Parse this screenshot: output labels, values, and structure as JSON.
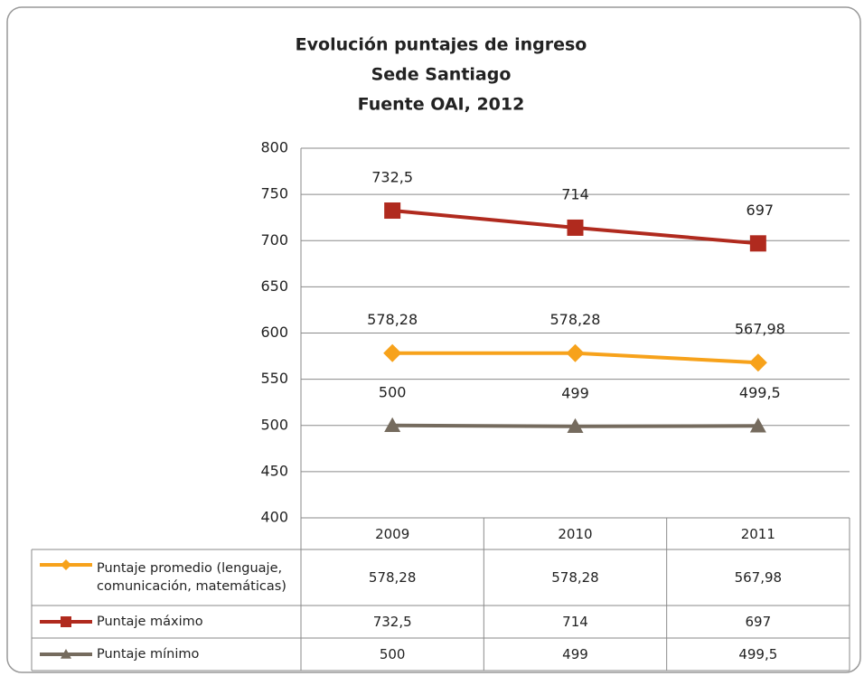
{
  "chart_data": {
    "type": "line",
    "title": [
      "Evolución puntajes de ingreso",
      "Sede Santiago",
      "Fuente OAI, 2012"
    ],
    "categories": [
      "2009",
      "2010",
      "2011"
    ],
    "series": [
      {
        "name": "Puntaje promedio (lenguaje, comunicación, matemáticas)",
        "color": "#f7a21b",
        "marker": "diamond",
        "values": [
          578.28,
          578.28,
          567.98
        ],
        "value_labels": [
          "578,28",
          "578,28",
          "567,98"
        ]
      },
      {
        "name": "Puntaje máximo",
        "color": "#b02a1e",
        "marker": "square",
        "values": [
          732.5,
          714,
          697
        ],
        "value_labels": [
          "732,5",
          "714",
          "697"
        ]
      },
      {
        "name": "Puntaje mínimo",
        "color": "#756b5e",
        "marker": "triangle",
        "values": [
          500,
          499,
          499.5
        ],
        "value_labels": [
          "500",
          "499",
          "499,5"
        ]
      }
    ],
    "ylim": [
      400,
      800
    ],
    "yticks": [
      400,
      450,
      500,
      550,
      600,
      650,
      700,
      750,
      800
    ],
    "grid": true,
    "data_table": true
  }
}
